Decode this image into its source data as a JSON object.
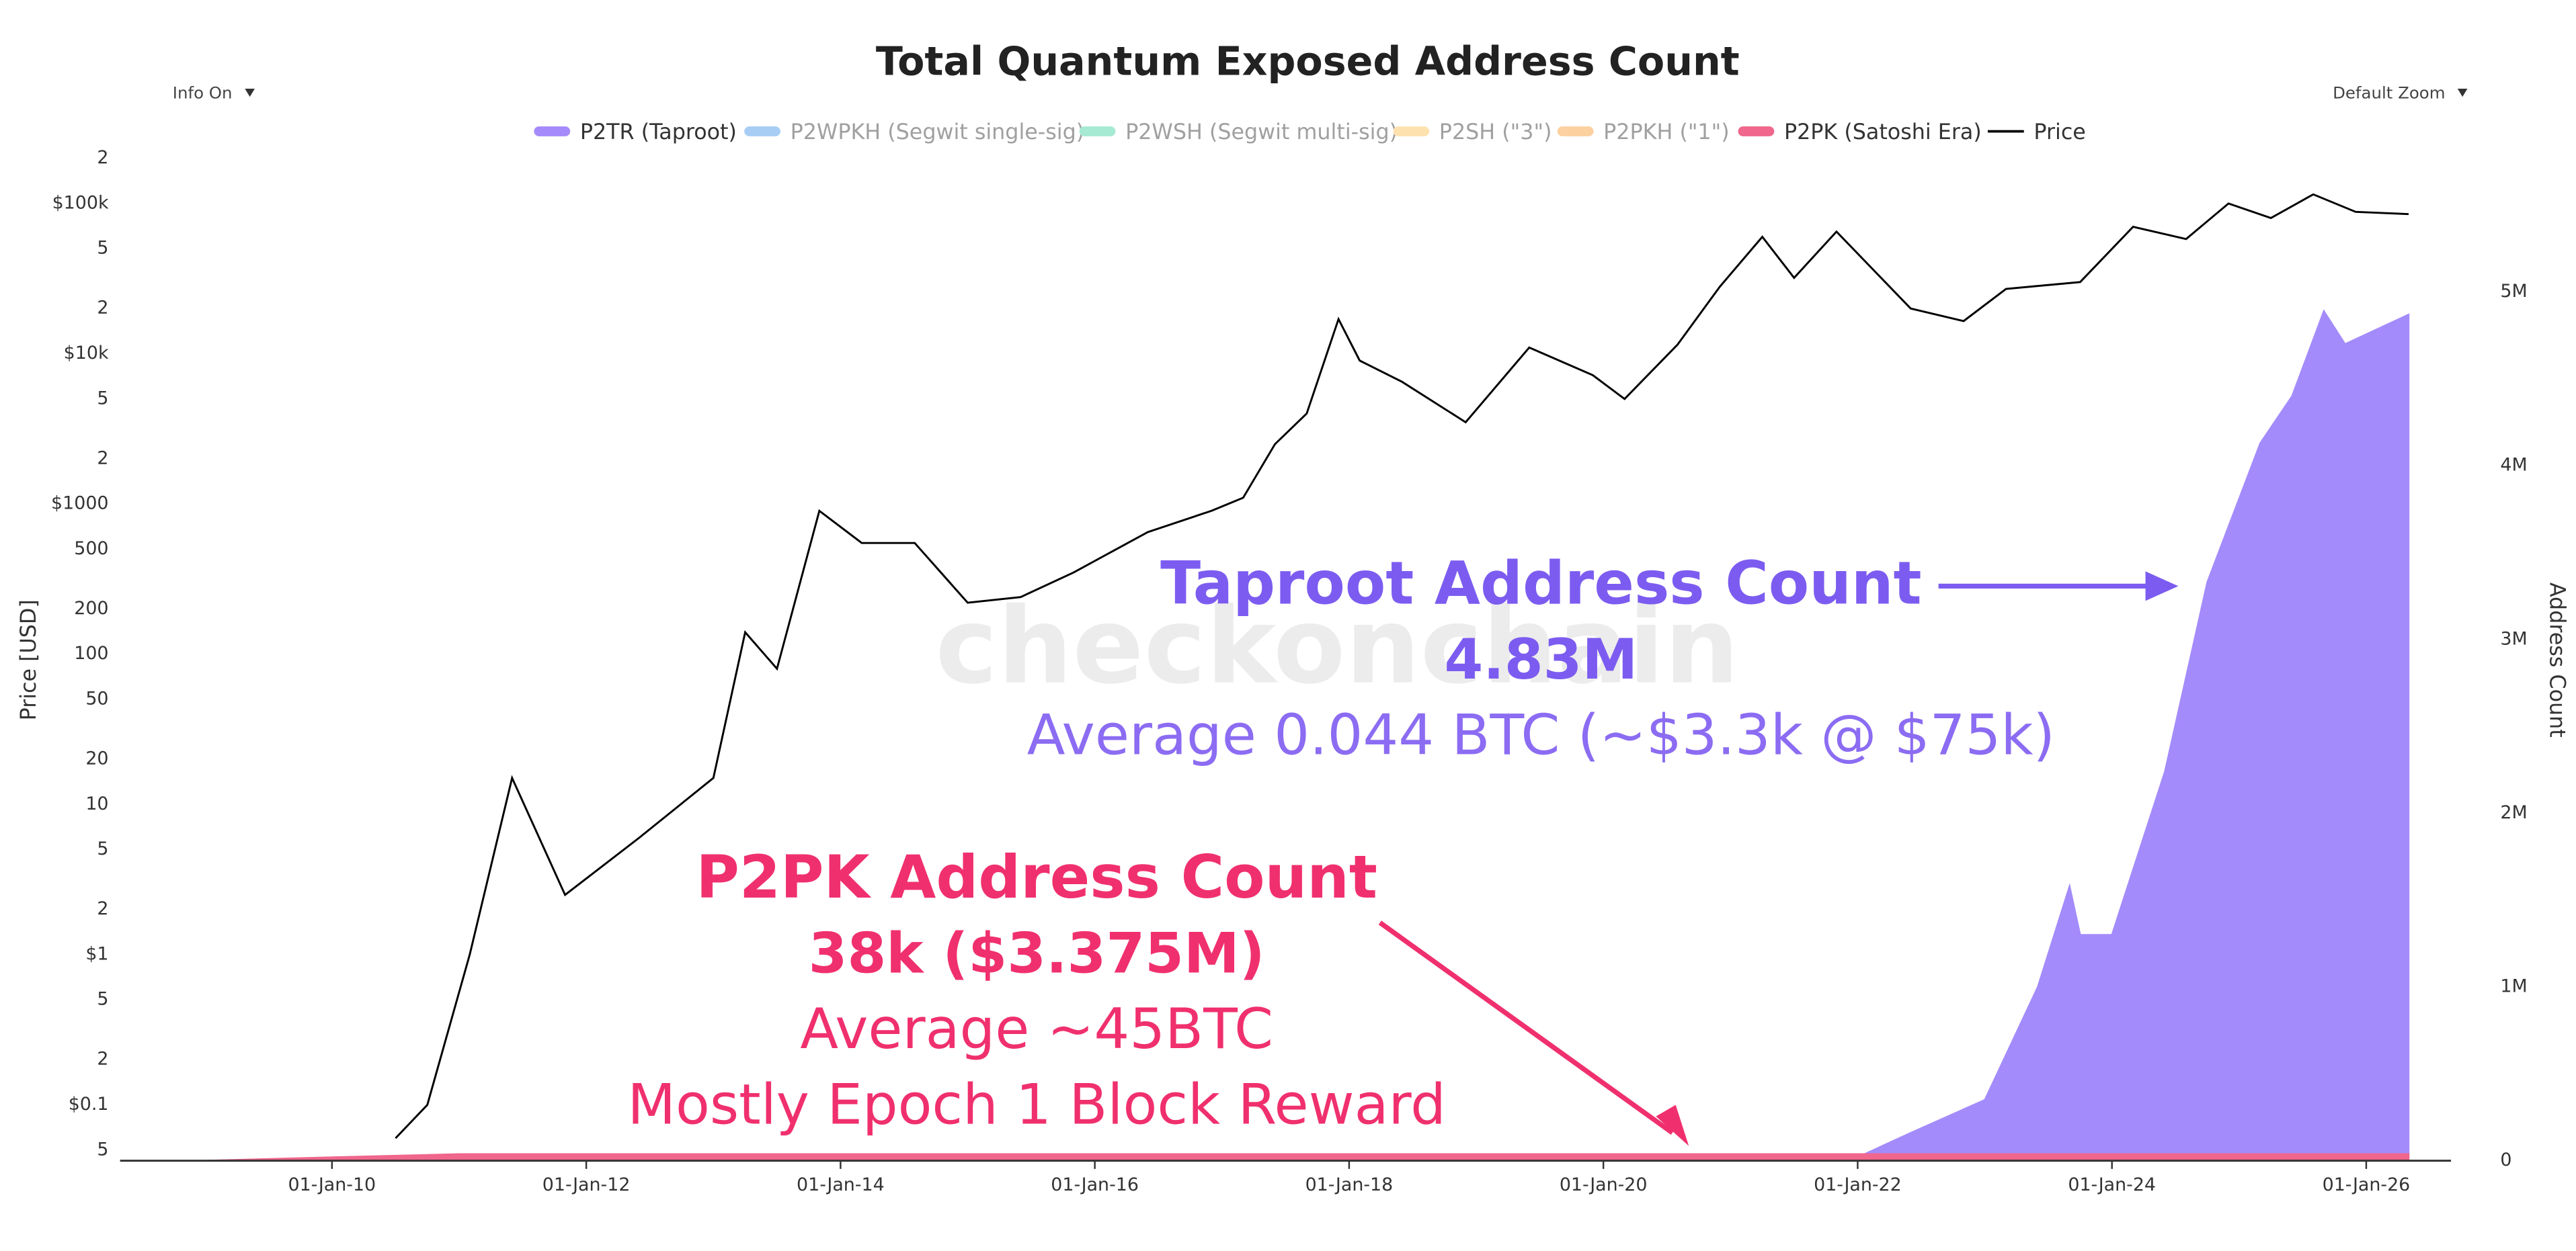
{
  "chart_data": {
    "type": "area",
    "title": "Total Quantum Exposed Address Count",
    "controls": [
      "Info On",
      "Default Zoom"
    ],
    "watermark": "checkonchain",
    "ylabel": "Price [USD]",
    "y2label": "Address Count",
    "xlim": [
      "2008-05",
      "2026-09"
    ],
    "xticks": [
      {
        "value": "2010-01",
        "label": "01-Jan-10"
      },
      {
        "value": "2012-01",
        "label": "01-Jan-12"
      },
      {
        "value": "2014-01",
        "label": "01-Jan-14"
      },
      {
        "value": "2016-01",
        "label": "01-Jan-16"
      },
      {
        "value": "2018-01",
        "label": "01-Jan-18"
      },
      {
        "value": "2020-01",
        "label": "01-Jan-20"
      },
      {
        "value": "2022-01",
        "label": "01-Jan-22"
      },
      {
        "value": "2024-01",
        "label": "01-Jan-24"
      },
      {
        "value": "2026-01",
        "label": "01-Jan-26"
      }
    ],
    "ylog": true,
    "ylim": [
      0.0425,
      235000
    ],
    "yticks": [
      {
        "value": 0.05,
        "label": "5"
      },
      {
        "value": 0.1,
        "label": "$0.1"
      },
      {
        "value": 0.2,
        "label": "2"
      },
      {
        "value": 0.5,
        "label": "5"
      },
      {
        "value": 1,
        "label": "$1"
      },
      2,
      5,
      10,
      20,
      50,
      100,
      200,
      500,
      {
        "value": 1000,
        "label": "$1000"
      },
      {
        "value": 2000,
        "label": "2"
      },
      {
        "value": 5000,
        "label": "5"
      },
      {
        "value": 10000,
        "label": "$10k"
      },
      {
        "value": 20000,
        "label": "2"
      },
      {
        "value": 50000,
        "label": "5"
      },
      {
        "value": 100000,
        "label": "$100k"
      },
      {
        "value": 200000,
        "label": "2"
      }
    ],
    "y2lim": [
      0,
      5830000
    ],
    "y2ticks": [
      0,
      {
        "value": 1000000,
        "label": "1M"
      },
      {
        "value": 2000000,
        "label": "2M"
      },
      {
        "value": 3000000,
        "label": "3M"
      },
      {
        "value": 4000000,
        "label": "4M"
      },
      {
        "value": 5000000,
        "label": "5M"
      }
    ],
    "series": [
      {
        "name": "P2TR (Taproot)",
        "color": "#a48bfb",
        "axis": "y2",
        "x": [
          "2021-11",
          "2022-01",
          "2022-06",
          "2023-01",
          "2023-06",
          "2023-09",
          "2023-10",
          "2024-01",
          "2024-06",
          "2024-10",
          "2025-03",
          "2025-06",
          "2025-09",
          "2025-11",
          "2026-05"
        ],
        "values": [
          0,
          20000,
          160000,
          350000,
          1000000,
          1580000,
          1300000,
          1300000,
          2240000,
          3330000,
          4130000,
          4400000,
          4890000,
          4700000,
          4870000
        ]
      },
      {
        "name": "P2WPKH (Segwit single-sig)",
        "color": "#a8cdf5",
        "axis": "y2",
        "hidden": true
      },
      {
        "name": "P2WSH (Segwit multi-sig)",
        "color": "#a6ead3",
        "axis": "y2",
        "hidden": true
      },
      {
        "name": "P2SH (\"3\")",
        "color": "#fde2b0",
        "axis": "y2",
        "hidden": true
      },
      {
        "name": "P2PKH (\"1\")",
        "color": "#fdd0a0",
        "axis": "y2",
        "hidden": true
      },
      {
        "name": "P2PK (Satoshi Era)",
        "color": "#f0668c",
        "axis": "y2",
        "x": [
          "2009-01",
          "2010-01",
          "2011-01",
          "2026-05"
        ],
        "values": [
          0,
          20000,
          38000,
          38000
        ]
      },
      {
        "name": "Price",
        "color": "#000000",
        "kind": "line",
        "x": [
          "2010-07",
          "2010-10",
          "2011-02",
          "2011-06",
          "2011-11",
          "2012-06",
          "2013-01",
          "2013-04",
          "2013-07",
          "2013-11",
          "2014-03",
          "2014-08",
          "2015-01",
          "2015-06",
          "2015-11",
          "2016-06",
          "2016-12",
          "2017-03",
          "2017-06",
          "2017-09",
          "2017-12",
          "2018-02",
          "2018-06",
          "2018-12",
          "2019-06",
          "2019-12",
          "2020-03",
          "2020-08",
          "2020-12",
          "2021-04",
          "2021-07",
          "2021-11",
          "2022-06",
          "2022-11",
          "2023-03",
          "2023-10",
          "2024-03",
          "2024-08",
          "2024-12",
          "2025-04",
          "2025-08",
          "2025-12",
          "2026-05"
        ],
        "values": [
          0.06,
          0.1,
          1,
          15,
          2.5,
          6,
          15,
          140,
          80,
          900,
          550,
          550,
          220,
          240,
          350,
          650,
          900,
          1100,
          2500,
          4000,
          17000,
          9000,
          6500,
          3500,
          11000,
          7200,
          5000,
          11500,
          28000,
          60000,
          32000,
          65000,
          20000,
          16500,
          27000,
          30000,
          70000,
          58000,
          100000,
          80000,
          115000,
          88000,
          85000
        ]
      }
    ],
    "annotations": [
      {
        "text": "Taproot Address Count",
        "color": "#7c5cf0"
      },
      {
        "text": "4.83M",
        "color": "#7c5cf0"
      },
      {
        "text": "Average 0.044 BTC (~$3.3k @ $75k)",
        "color": "#8b6cf2"
      },
      {
        "text": "P2PK Address Count",
        "color": "#f0306e"
      },
      {
        "text": "38k ($3.375M)",
        "color": "#f0306e"
      },
      {
        "text": "Average ~45BTC",
        "color": "#f0306e"
      },
      {
        "text": "Mostly Epoch 1 Block Reward",
        "color": "#f0306e"
      }
    ]
  }
}
